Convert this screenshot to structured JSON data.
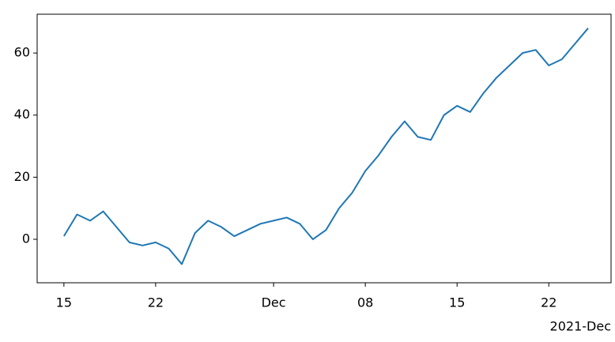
{
  "chart_data": {
    "type": "line",
    "x": [
      "2021-11-15",
      "2021-11-16",
      "2021-11-17",
      "2021-11-18",
      "2021-11-19",
      "2021-11-20",
      "2021-11-21",
      "2021-11-22",
      "2021-11-23",
      "2021-11-24",
      "2021-11-25",
      "2021-11-26",
      "2021-11-27",
      "2021-11-28",
      "2021-11-29",
      "2021-11-30",
      "2021-12-01",
      "2021-12-02",
      "2021-12-03",
      "2021-12-04",
      "2021-12-05",
      "2021-12-06",
      "2021-12-07",
      "2021-12-08",
      "2021-12-09",
      "2021-12-10",
      "2021-12-11",
      "2021-12-12",
      "2021-12-13",
      "2021-12-14",
      "2021-12-15",
      "2021-12-16",
      "2021-12-17",
      "2021-12-18",
      "2021-12-19",
      "2021-12-20",
      "2021-12-21",
      "2021-12-22",
      "2021-12-23",
      "2021-12-24",
      "2021-12-25"
    ],
    "series": [
      {
        "color": "#1f77b4",
        "values": [
          1,
          8,
          6,
          9,
          4,
          -1,
          -2,
          -1,
          -3,
          -8,
          2,
          6,
          4,
          1,
          3,
          5,
          6,
          7,
          5,
          0,
          3,
          10,
          15,
          22,
          27,
          33,
          38,
          33,
          32,
          40,
          43,
          41,
          47,
          52,
          56,
          60,
          61,
          56,
          58,
          63,
          68
        ]
      }
    ],
    "xlim": [
      "2021-11-12T23:00",
      "2021-12-26T18:00"
    ],
    "xticks": [
      {
        "value": "2021-11-15",
        "label": "15"
      },
      {
        "value": "2021-11-22",
        "label": "22"
      },
      {
        "value": "2021-12-01",
        "label": "Dec"
      },
      {
        "value": "2021-12-08",
        "label": "08"
      },
      {
        "value": "2021-12-15",
        "label": "15"
      },
      {
        "value": "2021-12-22",
        "label": "22"
      }
    ],
    "x_offset_label": "2021-Dec",
    "ylim": [
      -14,
      72.5
    ],
    "yticks": [
      0,
      20,
      40,
      60
    ],
    "grid": false
  }
}
